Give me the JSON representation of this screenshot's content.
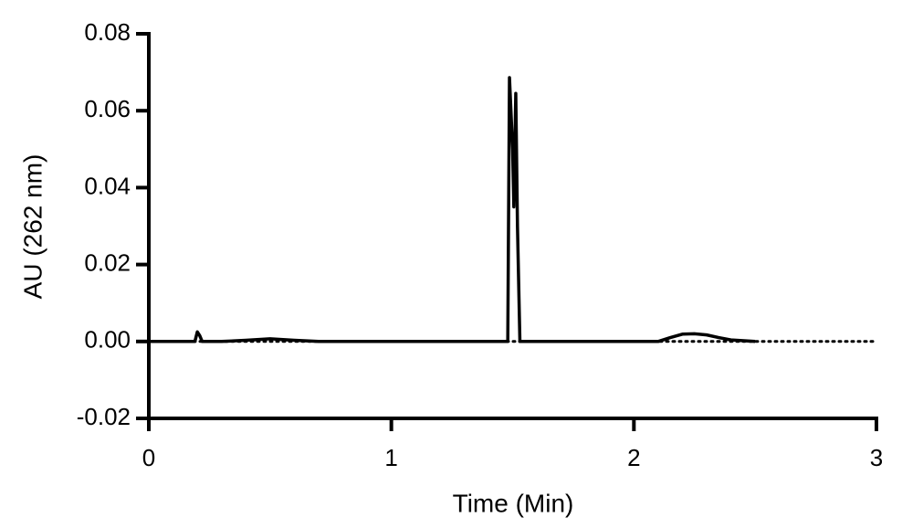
{
  "chart_data": {
    "type": "line",
    "xlabel": "Time (Min)",
    "ylabel": "AU (262 nm)",
    "xlim": [
      0,
      3
    ],
    "xticks": [
      0,
      1,
      2,
      3
    ],
    "ylim": [
      -0.02,
      0.08
    ],
    "yticks": [
      0.08,
      0.06,
      0.04,
      0.02,
      {
        "value": 0,
        "label": "0.00"
      },
      -0.02
    ],
    "series": [
      {
        "color": "#000000",
        "style": "solid",
        "x": [
          0,
          0.19,
          0.2,
          0.21,
          0.22,
          0.3,
          0.4,
          0.5,
          0.6,
          0.7,
          1.0,
          1.48,
          1.487,
          1.5,
          1.505,
          1.513,
          1.52,
          1.53,
          1.6,
          2.1,
          2.15,
          2.2,
          2.25,
          2.3,
          2.35,
          2.4,
          2.5
        ],
        "values": [
          0,
          0,
          0.0025,
          0.0015,
          0,
          0,
          0.0003,
          0.0007,
          0.0003,
          0,
          0,
          0,
          0.0686,
          0.05,
          0.035,
          0.0645,
          0.03,
          0,
          0,
          0,
          0.001,
          0.0019,
          0.002,
          0.0017,
          0.001,
          0.0004,
          0
        ]
      },
      {
        "color": "#000000",
        "style": "dotted",
        "x": [
          0,
          3
        ],
        "values": [
          0,
          0
        ]
      }
    ]
  }
}
